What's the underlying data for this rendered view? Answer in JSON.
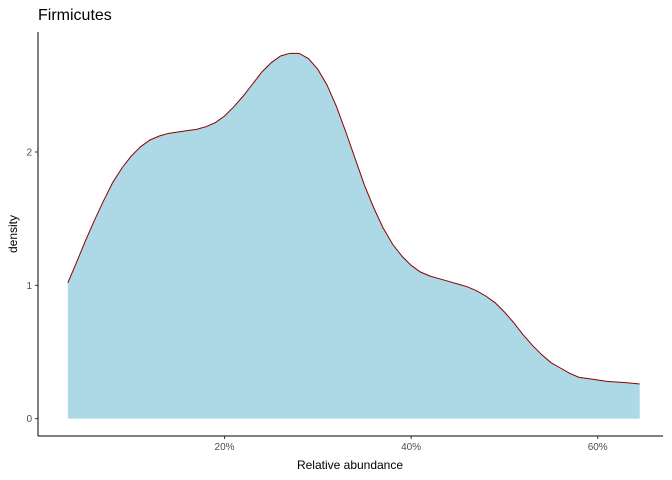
{
  "chart_data": {
    "type": "area",
    "title": "Firmicutes",
    "xlabel": "Relative abundance",
    "ylabel": "density",
    "x_ticks": [
      {
        "value": 0.2,
        "label": "20%"
      },
      {
        "value": 0.4,
        "label": "40%"
      },
      {
        "value": 0.6,
        "label": "60%"
      }
    ],
    "y_ticks": [
      {
        "value": 0,
        "label": "0"
      },
      {
        "value": 1,
        "label": "1"
      },
      {
        "value": 2,
        "label": "2"
      }
    ],
    "xlim": [
      0.0,
      0.67
    ],
    "ylim": [
      -0.13,
      2.9
    ],
    "grid": false,
    "fill_color": "#ADD8E6",
    "line_color": "#8B0000",
    "x": [
      0.032,
      0.04,
      0.05,
      0.06,
      0.07,
      0.08,
      0.09,
      0.1,
      0.11,
      0.12,
      0.13,
      0.14,
      0.15,
      0.16,
      0.17,
      0.18,
      0.19,
      0.2,
      0.21,
      0.22,
      0.23,
      0.24,
      0.25,
      0.26,
      0.27,
      0.28,
      0.29,
      0.3,
      0.31,
      0.32,
      0.33,
      0.34,
      0.35,
      0.36,
      0.37,
      0.38,
      0.39,
      0.4,
      0.41,
      0.42,
      0.43,
      0.44,
      0.45,
      0.46,
      0.47,
      0.48,
      0.49,
      0.5,
      0.51,
      0.52,
      0.53,
      0.54,
      0.55,
      0.56,
      0.57,
      0.58,
      0.59,
      0.6,
      0.61,
      0.62,
      0.63,
      0.645
    ],
    "y": [
      1.02,
      1.15,
      1.32,
      1.48,
      1.63,
      1.77,
      1.88,
      1.97,
      2.04,
      2.09,
      2.12,
      2.14,
      2.15,
      2.16,
      2.17,
      2.19,
      2.22,
      2.27,
      2.34,
      2.42,
      2.51,
      2.6,
      2.67,
      2.72,
      2.74,
      2.74,
      2.7,
      2.62,
      2.5,
      2.34,
      2.15,
      1.95,
      1.75,
      1.58,
      1.43,
      1.31,
      1.22,
      1.15,
      1.1,
      1.07,
      1.05,
      1.03,
      1.01,
      0.99,
      0.96,
      0.92,
      0.87,
      0.8,
      0.72,
      0.63,
      0.55,
      0.48,
      0.42,
      0.38,
      0.34,
      0.31,
      0.3,
      0.29,
      0.28,
      0.275,
      0.27,
      0.26
    ]
  }
}
